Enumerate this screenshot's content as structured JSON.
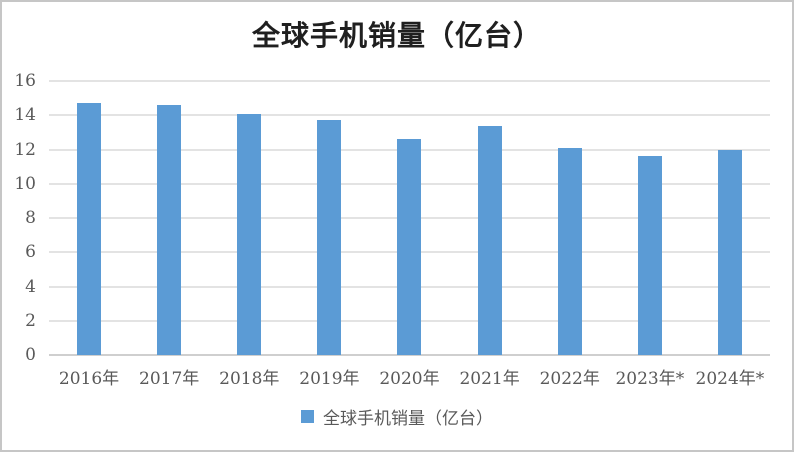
{
  "chart_data": {
    "type": "bar",
    "title": "全球手机销量（亿台）",
    "categories": [
      "2016年",
      "2017年",
      "2018年",
      "2019年",
      "2020年",
      "2021年",
      "2022年",
      "2023年*",
      "2024年*"
    ],
    "values": [
      14.7,
      14.6,
      14.1,
      13.7,
      12.6,
      13.35,
      12.1,
      11.6,
      12.0
    ],
    "series_name": "全球手机销量（亿台）",
    "legend": {
      "label": "全球手机销量（亿台）",
      "position": "bottom"
    },
    "xlabel": "",
    "ylabel": "",
    "ylim": [
      0,
      16
    ],
    "yticks": [
      0,
      2,
      4,
      6,
      8,
      10,
      12,
      14,
      16
    ],
    "grid": true,
    "colors": {
      "bar": "#5b9bd5",
      "gridline": "#e3e3e3",
      "axis_line": "#cfcfcf",
      "tick_text": "#595959",
      "title_text": "#1f1f1f",
      "frame_border": "#c6c6c6"
    }
  }
}
